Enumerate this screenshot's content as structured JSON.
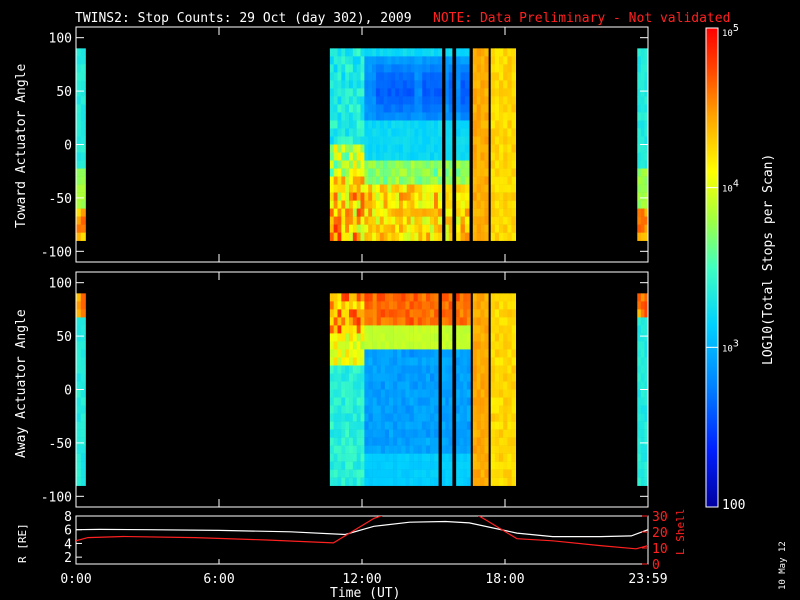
{
  "header": {
    "title": "TWINS2: Stop Counts: 29 Oct (day 302), 2009",
    "note": "NOTE: Data Preliminary - Not validated"
  },
  "footer": {
    "xlabel": "Time (UT)",
    "date_stamp": "10 May 12"
  },
  "colorbar": {
    "label": "LOG10(Total Stops per Scan)",
    "ticks": [
      "10^5",
      "10^4",
      "10^3",
      "100"
    ],
    "range_log": [
      2,
      5
    ]
  },
  "chart_data": [
    {
      "type": "heatmap",
      "name": "toward",
      "ylabel": "Toward Actuator Angle",
      "ylim": [
        -110,
        110
      ],
      "yticks": [
        -100,
        -50,
        0,
        50,
        100
      ],
      "xlim_hours": [
        0,
        24
      ],
      "xticks": [
        "0:00",
        "6:00",
        "12:00",
        "18:00",
        "23:59"
      ],
      "data_blocks": [
        {
          "x": [
            0.0,
            0.4
          ],
          "profile": "edge"
        },
        {
          "x": [
            10.65,
            12.1
          ],
          "profile": "toward_noisy"
        },
        {
          "x": [
            12.1,
            14.2
          ],
          "profile": "toward_main"
        },
        {
          "x": [
            14.2,
            15.35
          ],
          "profile": "toward_main"
        },
        {
          "x": [
            15.5,
            15.78
          ],
          "profile": "toward_main"
        },
        {
          "x": [
            15.95,
            16.5
          ],
          "profile": "toward_main"
        },
        {
          "x": [
            16.65,
            17.3
          ],
          "profile": "uniform_mid"
        },
        {
          "x": [
            17.4,
            18.45
          ],
          "profile": "uniform_high"
        },
        {
          "x": [
            23.55,
            24.0
          ],
          "profile": "edge"
        }
      ]
    },
    {
      "type": "heatmap",
      "name": "away",
      "ylabel": "Away Actuator Angle",
      "ylim": [
        -110,
        110
      ],
      "yticks": [
        -100,
        -50,
        0,
        50,
        100
      ],
      "xlim_hours": [
        0,
        24
      ],
      "xticks": [
        "0:00",
        "6:00",
        "12:00",
        "18:00",
        "23:59"
      ],
      "data_blocks": [
        {
          "x": [
            0.0,
            0.4
          ],
          "profile": "edge_away"
        },
        {
          "x": [
            10.65,
            12.1
          ],
          "profile": "away_noisy"
        },
        {
          "x": [
            12.1,
            15.2
          ],
          "profile": "away_main"
        },
        {
          "x": [
            15.35,
            15.78
          ],
          "profile": "away_main"
        },
        {
          "x": [
            15.95,
            16.55
          ],
          "profile": "away_main"
        },
        {
          "x": [
            16.65,
            17.3
          ],
          "profile": "uniform_mid"
        },
        {
          "x": [
            17.4,
            18.45
          ],
          "profile": "uniform_high"
        },
        {
          "x": [
            23.55,
            24.0
          ],
          "profile": "edge_away"
        }
      ]
    },
    {
      "type": "line",
      "name": "orbit",
      "ylabel_left": "R [RE]",
      "ylabel_right": "L Shell",
      "ylim_left": [
        1,
        8
      ],
      "yticks_left": [
        2,
        4,
        6,
        8
      ],
      "ylim_right": [
        0,
        30
      ],
      "yticks_right": [
        0,
        10,
        20,
        30
      ],
      "series": [
        {
          "name": "R",
          "color": "#ffffff",
          "x": [
            0,
            1,
            3,
            6,
            9,
            11.3,
            12.5,
            14,
            15.5,
            16.5,
            18.5,
            20,
            22,
            23.3,
            24
          ],
          "y": [
            6.0,
            6.05,
            6.0,
            5.9,
            5.7,
            5.3,
            6.5,
            7.1,
            7.2,
            7.0,
            5.5,
            5.0,
            5.0,
            5.1,
            6.0
          ]
        },
        {
          "name": "L Shell",
          "color": "#ff2020",
          "x": [
            0,
            0.5,
            2,
            5,
            8,
            10.8,
            12.5,
            13.0,
            16.8,
            17.2,
            18.5,
            20,
            22,
            23.5,
            24
          ],
          "y": [
            14.5,
            16.5,
            17.2,
            16.5,
            15.0,
            13.2,
            28.5,
            31,
            31,
            27.5,
            15.8,
            14.5,
            11.5,
            9.5,
            11.5
          ]
        }
      ]
    }
  ],
  "colors": {
    "note": "#ff2020",
    "axes": "#ffffff",
    "background": "#000000"
  }
}
